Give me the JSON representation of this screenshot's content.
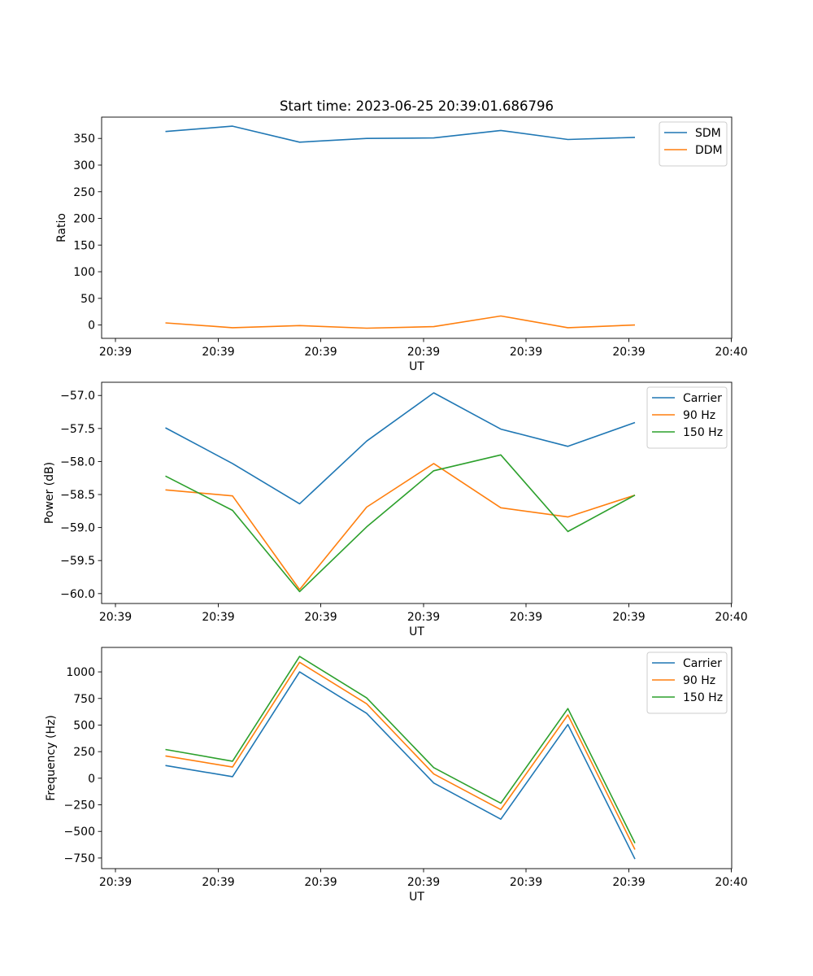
{
  "figure_title": "Start time: 2023-06-25 20:39:01.686796",
  "chart_data": [
    {
      "type": "line",
      "title": "Start time: 2023-06-25 20:39:01.686796",
      "xlabel": "UT",
      "ylabel": "Ratio",
      "x_tick_labels": [
        "20:39",
        "20:39",
        "20:39",
        "20:39",
        "20:39",
        "20:39",
        "20:40"
      ],
      "y_ticks": [
        0,
        50,
        100,
        150,
        200,
        250,
        300,
        350
      ],
      "y_tick_labels": [
        "0",
        "50",
        "100",
        "150",
        "200",
        "250",
        "300",
        "350"
      ],
      "ylim": [
        -25,
        390
      ],
      "legend_position": "top-right",
      "series": [
        {
          "name": "SDM",
          "color": "#1f77b4",
          "values": [
            363,
            373,
            343,
            350,
            351,
            365,
            348,
            352
          ]
        },
        {
          "name": "DDM",
          "color": "#ff7f0e",
          "values": [
            4,
            -5,
            -1,
            -6,
            -3,
            17,
            -5,
            0
          ]
        }
      ]
    },
    {
      "type": "line",
      "xlabel": "UT",
      "ylabel": "Power (dB)",
      "x_tick_labels": [
        "20:39",
        "20:39",
        "20:39",
        "20:39",
        "20:39",
        "20:39",
        "20:40"
      ],
      "y_ticks": [
        -60.0,
        -59.5,
        -59.0,
        -58.5,
        -58.0,
        -57.5,
        -57.0
      ],
      "y_tick_labels": [
        "−60.0",
        "−59.5",
        "−59.0",
        "−58.5",
        "−58.0",
        "−57.5",
        "−57.0"
      ],
      "ylim": [
        -60.15,
        -56.8
      ],
      "legend_position": "top-right",
      "series": [
        {
          "name": "Carrier",
          "color": "#1f77b4",
          "values": [
            -57.49,
            -58.03,
            -58.64,
            -57.69,
            -56.96,
            -57.51,
            -57.77,
            -57.41
          ]
        },
        {
          "name": "90 Hz",
          "color": "#ff7f0e",
          "values": [
            -58.43,
            -58.52,
            -59.94,
            -58.69,
            -58.03,
            -58.7,
            -58.84,
            -58.51
          ]
        },
        {
          "name": "150 Hz",
          "color": "#2ca02c",
          "values": [
            -58.22,
            -58.74,
            -59.97,
            -58.99,
            -58.14,
            -57.9,
            -59.06,
            -58.51
          ]
        }
      ]
    },
    {
      "type": "line",
      "xlabel": "UT",
      "ylabel": "Frequency (Hz)",
      "x_tick_labels": [
        "20:39",
        "20:39",
        "20:39",
        "20:39",
        "20:39",
        "20:39",
        "20:40"
      ],
      "y_ticks": [
        -750,
        -500,
        -250,
        0,
        250,
        500,
        750,
        1000
      ],
      "y_tick_labels": [
        "−750",
        "−500",
        "−250",
        "0",
        "250",
        "500",
        "750",
        "1000"
      ],
      "ylim": [
        -850,
        1230
      ],
      "legend_position": "top-right",
      "series": [
        {
          "name": "Carrier",
          "color": "#1f77b4",
          "values": [
            120,
            15,
            1000,
            610,
            -45,
            -385,
            505,
            -760
          ]
        },
        {
          "name": "90 Hz",
          "color": "#ff7f0e",
          "values": [
            210,
            105,
            1090,
            700,
            40,
            -295,
            595,
            -670
          ]
        },
        {
          "name": "150 Hz",
          "color": "#2ca02c",
          "values": [
            270,
            160,
            1145,
            755,
            100,
            -235,
            655,
            -610
          ]
        }
      ]
    }
  ]
}
